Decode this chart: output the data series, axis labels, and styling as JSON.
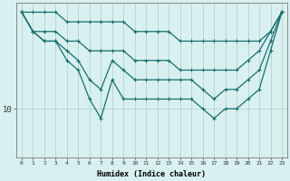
{
  "title": "",
  "xlabel": "Humidex (Indice chaleur)",
  "ylabel": "",
  "x": [
    0,
    1,
    2,
    3,
    4,
    5,
    6,
    7,
    8,
    9,
    10,
    11,
    12,
    13,
    14,
    15,
    16,
    17,
    18,
    19,
    20,
    21,
    22,
    23
  ],
  "line_top": [
    20,
    20,
    20,
    20,
    19,
    19,
    19,
    19,
    19,
    19,
    18,
    18,
    18,
    18,
    17,
    17,
    17,
    17,
    17,
    17,
    17,
    17,
    18,
    20
  ],
  "line_upper": [
    20,
    18,
    18,
    18,
    17,
    17,
    16,
    16,
    16,
    16,
    15,
    15,
    15,
    15,
    14,
    14,
    14,
    14,
    14,
    14,
    15,
    16,
    18,
    20
  ],
  "line_mid": [
    20,
    18,
    17,
    17,
    16,
    15,
    13,
    12,
    15,
    14,
    13,
    13,
    13,
    13,
    13,
    13,
    12,
    11,
    12,
    12,
    13,
    14,
    17,
    20
  ],
  "line_low": [
    20,
    18,
    17,
    17,
    15,
    14,
    11,
    9,
    13,
    11,
    11,
    11,
    11,
    11,
    11,
    11,
    10,
    9,
    10,
    10,
    11,
    12,
    16,
    20
  ],
  "bg_color": "#d8f0f0",
  "grid_color": "#b0cccc",
  "line_color": "#1a6e6e",
  "marker": "+",
  "ytick_labels": [
    "10"
  ],
  "ytick_values": [
    10
  ],
  "ylim": [
    5,
    21
  ],
  "xlim": [
    -0.5,
    23.5
  ]
}
